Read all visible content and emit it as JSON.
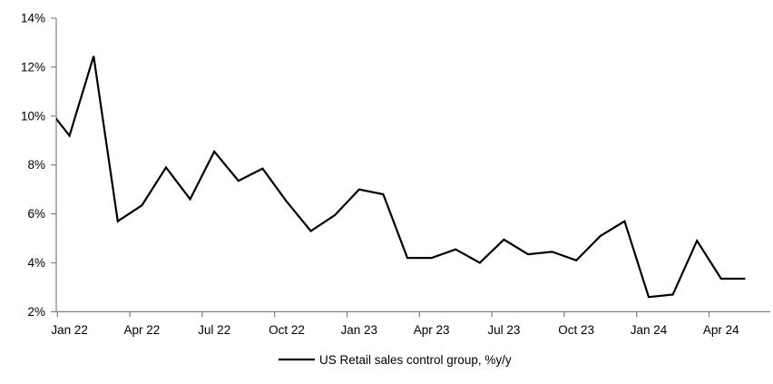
{
  "chart": {
    "legend_label": "US Retail sales control group, %y/y",
    "colors": {
      "line": "#000000",
      "axis": "#808080",
      "tick": "#808080",
      "text": "#000000",
      "background": "#ffffff"
    }
  },
  "chart_data": {
    "type": "line",
    "title": "",
    "xlabel": "",
    "ylabel": "",
    "y_unit": "%",
    "ylim": [
      2,
      14
    ],
    "grid": false,
    "legend_position": "bottom-center",
    "y_tick_labels": [
      "14%",
      "12%",
      "10%",
      "8%",
      "6%",
      "4%",
      "2%"
    ],
    "x_tick_labels": [
      "Jan 22",
      "Apr 22",
      "Jul 22",
      "Oct 22",
      "Jan 23",
      "Apr 23",
      "Jul 23",
      "Oct 23",
      "Jan 24",
      "Apr 24"
    ],
    "note": "First point (Dec 21) lies left of the plot area; its segment is clipped and the line enters the plot at ~9.9% on the y-axis.",
    "series": [
      {
        "name": "US Retail sales control group, %y/y",
        "x": [
          "Dec 21",
          "Jan 22",
          "Feb 22",
          "Mar 22",
          "Apr 22",
          "May 22",
          "Jun 22",
          "Jul 22",
          "Aug 22",
          "Sep 22",
          "Oct 22",
          "Nov 22",
          "Dec 22",
          "Jan 23",
          "Feb 23",
          "Mar 23",
          "Apr 23",
          "May 23",
          "Jun 23",
          "Jul 23",
          "Aug 23",
          "Sep 23",
          "Oct 23",
          "Nov 23",
          "Dec 23",
          "Jan 24",
          "Feb 24",
          "Mar 24",
          "Apr 24",
          "May 24"
        ],
        "values": [
          10.45,
          9.2,
          12.45,
          5.7,
          6.35,
          7.9,
          6.6,
          8.55,
          7.35,
          7.85,
          6.5,
          5.3,
          5.95,
          7.0,
          6.8,
          4.2,
          4.2,
          4.55,
          4.0,
          4.95,
          4.35,
          4.45,
          4.1,
          5.1,
          5.7,
          2.6,
          2.7,
          4.9,
          3.35,
          3.35
        ]
      }
    ]
  }
}
